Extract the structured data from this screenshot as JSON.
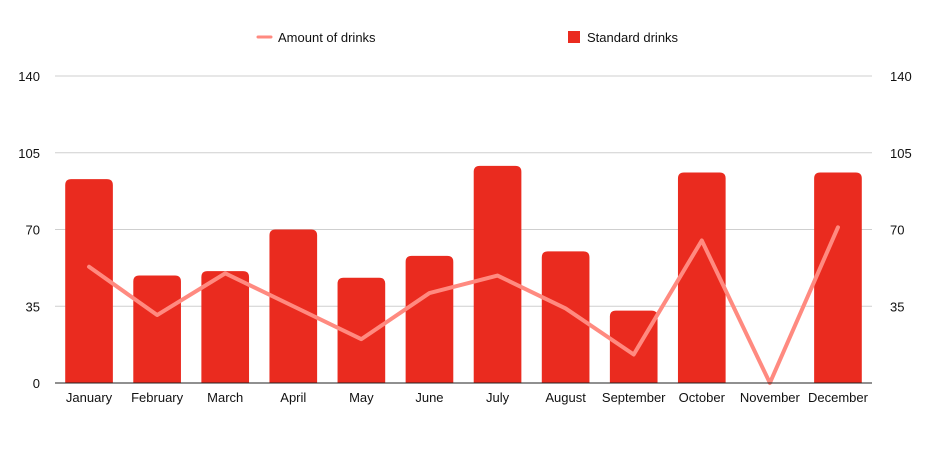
{
  "chart_data": {
    "type": "bar",
    "title": "",
    "xlabel": "",
    "ylabel": "",
    "categories": [
      "January",
      "February",
      "March",
      "April",
      "May",
      "June",
      "July",
      "August",
      "September",
      "October",
      "November",
      "December"
    ],
    "series": [
      {
        "name": "Standard drinks",
        "type": "bar",
        "axis": "left",
        "color": "#ea2b1f",
        "values": [
          93,
          49,
          51,
          70,
          48,
          58,
          99,
          60,
          33,
          96,
          0,
          96
        ]
      },
      {
        "name": "Amount of drinks",
        "type": "line",
        "axis": "right",
        "color": "#ff8a80",
        "values": [
          53,
          31,
          50,
          35,
          20,
          41,
          49,
          34,
          13,
          65,
          0,
          71
        ]
      }
    ],
    "ylim": [
      0,
      140
    ],
    "y_ticks": [
      "0",
      "35",
      "70",
      "105",
      "140"
    ],
    "y2lim": [
      0,
      140
    ],
    "y2_ticks": [
      "35",
      "70",
      "105",
      "140"
    ],
    "grid": true,
    "legend_position": "top-center"
  }
}
